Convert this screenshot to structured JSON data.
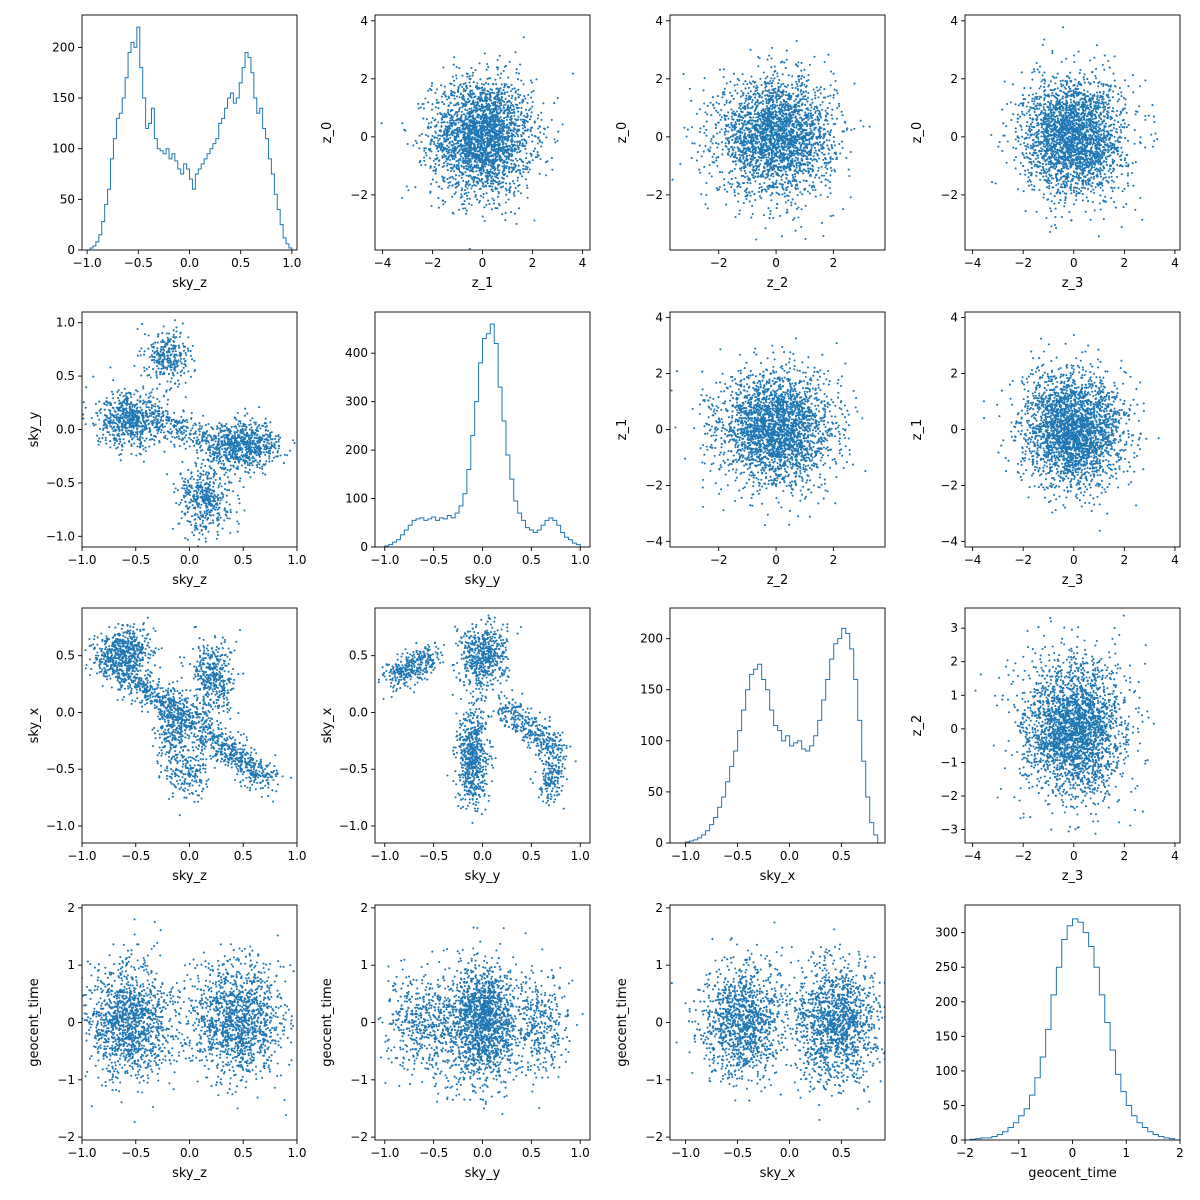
{
  "figure": {
    "colors": {
      "series": "#1f77b4",
      "frame": "#000000",
      "background": "#ffffff"
    }
  },
  "chart_data": [
    {
      "type": "histogram",
      "row": 0,
      "col": 0,
      "xlabel": "sky_z",
      "ylabel": "",
      "xlim": [
        -1.05,
        1.05
      ],
      "ylim": [
        0,
        232
      ],
      "xticks": [
        -1.0,
        -0.5,
        0.0,
        0.5,
        1.0
      ],
      "yticks": [
        0,
        50,
        100,
        150,
        200
      ],
      "bins": {
        "start": -1.0,
        "end": 1.0,
        "heights": [
          0,
          2,
          4,
          8,
          15,
          28,
          45,
          60,
          90,
          110,
          130,
          135,
          150,
          170,
          195,
          205,
          200,
          220,
          180,
          150,
          120,
          125,
          140,
          110,
          100,
          98,
          95,
          100,
          90,
          95,
          88,
          80,
          75,
          85,
          80,
          70,
          60,
          75,
          80,
          85,
          90,
          95,
          100,
          105,
          110,
          125,
          130,
          140,
          150,
          155,
          145,
          150,
          165,
          180,
          195,
          190,
          175,
          150,
          135,
          140,
          120,
          110,
          90,
          75,
          55,
          40,
          25,
          12,
          6,
          2
        ]
      },
      "generator": {
        "kind": "hist"
      }
    },
    {
      "type": "scatter",
      "row": 0,
      "col": 1,
      "xlabel": "z_1",
      "ylabel": "z_0",
      "xlim": [
        -4.3,
        4.3
      ],
      "ylim": [
        -3.9,
        4.2
      ],
      "xticks": [
        -4,
        -2,
        0,
        2,
        4
      ],
      "yticks": [
        -2,
        0,
        2,
        4
      ],
      "generator": {
        "kind": "gaussian"
      }
    },
    {
      "type": "scatter",
      "row": 0,
      "col": 2,
      "xlabel": "z_2",
      "ylabel": "z_0",
      "xlim": [
        -3.7,
        3.8
      ],
      "ylim": [
        -3.9,
        4.2
      ],
      "xticks": [
        -2,
        0,
        2
      ],
      "yticks": [
        -2,
        0,
        2,
        4
      ],
      "generator": {
        "kind": "gaussian"
      }
    },
    {
      "type": "scatter",
      "row": 0,
      "col": 3,
      "xlabel": "z_3",
      "ylabel": "z_0",
      "xlim": [
        -4.3,
        4.2
      ],
      "ylim": [
        -3.9,
        4.2
      ],
      "xticks": [
        -4,
        -2,
        0,
        2,
        4
      ],
      "yticks": [
        -2,
        0,
        2,
        4
      ],
      "generator": {
        "kind": "gaussian"
      }
    },
    {
      "type": "scatter",
      "row": 1,
      "col": 0,
      "xlabel": "sky_z",
      "ylabel": "sky_y",
      "xlim": [
        -1.0,
        1.0
      ],
      "ylim": [
        -1.1,
        1.1
      ],
      "xticks": [
        -1.0,
        -0.5,
        0.0,
        0.5,
        1.0
      ],
      "yticks": [
        -1.0,
        -0.5,
        0.0,
        0.5,
        1.0
      ],
      "generator": {
        "kind": "sky_zy"
      }
    },
    {
      "type": "histogram",
      "row": 1,
      "col": 1,
      "xlabel": "sky_y",
      "ylabel": "",
      "xlim": [
        -1.1,
        1.1
      ],
      "ylim": [
        0,
        485
      ],
      "xticks": [
        -1.0,
        -0.5,
        0.0,
        0.5,
        1.0
      ],
      "yticks": [
        0,
        100,
        200,
        300,
        400
      ],
      "bins": {
        "start": -1.0,
        "end": 1.0,
        "heights": [
          2,
          5,
          10,
          15,
          25,
          35,
          45,
          55,
          58,
          60,
          55,
          58,
          62,
          55,
          60,
          58,
          65,
          60,
          70,
          85,
          110,
          160,
          230,
          300,
          380,
          430,
          440,
          460,
          420,
          330,
          260,
          190,
          140,
          95,
          70,
          55,
          40,
          35,
          30,
          35,
          45,
          55,
          60,
          55,
          45,
          30,
          20,
          15,
          8,
          5
        ]
      },
      "generator": {
        "kind": "hist"
      }
    },
    {
      "type": "scatter",
      "row": 1,
      "col": 2,
      "xlabel": "z_2",
      "ylabel": "z_1",
      "xlim": [
        -3.7,
        3.8
      ],
      "ylim": [
        -4.2,
        4.2
      ],
      "xticks": [
        -2,
        0,
        2
      ],
      "yticks": [
        -4,
        -2,
        0,
        2,
        4
      ],
      "generator": {
        "kind": "gaussian"
      }
    },
    {
      "type": "scatter",
      "row": 1,
      "col": 3,
      "xlabel": "z_3",
      "ylabel": "z_1",
      "xlim": [
        -4.3,
        4.2
      ],
      "ylim": [
        -4.2,
        4.2
      ],
      "xticks": [
        -4,
        -2,
        0,
        2,
        4
      ],
      "yticks": [
        -4,
        -2,
        0,
        2,
        4
      ],
      "generator": {
        "kind": "gaussian"
      }
    },
    {
      "type": "scatter",
      "row": 2,
      "col": 0,
      "xlabel": "sky_z",
      "ylabel": "sky_x",
      "xlim": [
        -1.0,
        1.0
      ],
      "ylim": [
        -1.15,
        0.92
      ],
      "xticks": [
        -1.0,
        -0.5,
        0.0,
        0.5,
        1.0
      ],
      "yticks": [
        -1.0,
        -0.5,
        0.0,
        0.5
      ],
      "generator": {
        "kind": "sky_zx"
      }
    },
    {
      "type": "scatter",
      "row": 2,
      "col": 1,
      "xlabel": "sky_y",
      "ylabel": "sky_x",
      "xlim": [
        -1.1,
        1.1
      ],
      "ylim": [
        -1.15,
        0.92
      ],
      "xticks": [
        -1.0,
        -0.5,
        0.0,
        0.5,
        1.0
      ],
      "yticks": [
        -1.0,
        -0.5,
        0.0,
        0.5
      ],
      "generator": {
        "kind": "sky_yx"
      }
    },
    {
      "type": "histogram",
      "row": 2,
      "col": 2,
      "xlabel": "sky_x",
      "ylabel": "",
      "xlim": [
        -1.15,
        0.92
      ],
      "ylim": [
        0,
        230
      ],
      "xticks": [
        -1.0,
        -0.5,
        0.0,
        0.5
      ],
      "yticks": [
        0,
        50,
        100,
        150,
        200
      ],
      "bins": {
        "start": -1.0,
        "end": 0.85,
        "heights": [
          1,
          2,
          3,
          5,
          8,
          12,
          18,
          25,
          35,
          45,
          60,
          75,
          90,
          110,
          130,
          150,
          165,
          170,
          175,
          160,
          150,
          130,
          115,
          110,
          100,
          105,
          95,
          98,
          100,
          92,
          90,
          95,
          105,
          120,
          140,
          160,
          180,
          195,
          200,
          210,
          205,
          190,
          160,
          120,
          80,
          45,
          20,
          8
        ]
      },
      "generator": {
        "kind": "hist"
      }
    },
    {
      "type": "scatter",
      "row": 2,
      "col": 3,
      "xlabel": "z_3",
      "ylabel": "z_2",
      "xlim": [
        -4.3,
        4.2
      ],
      "ylim": [
        -3.4,
        3.6
      ],
      "xticks": [
        -4,
        -2,
        0,
        2,
        4
      ],
      "yticks": [
        -3,
        -2,
        -1,
        0,
        1,
        2,
        3
      ],
      "generator": {
        "kind": "gaussian"
      }
    },
    {
      "type": "scatter",
      "row": 3,
      "col": 0,
      "xlabel": "sky_z",
      "ylabel": "geocent_time",
      "xlim": [
        -1.0,
        1.0
      ],
      "ylim": [
        -2.05,
        2.05
      ],
      "xticks": [
        -1.0,
        -0.5,
        0.0,
        0.5,
        1.0
      ],
      "yticks": [
        -2,
        -1,
        0,
        1,
        2
      ],
      "generator": {
        "kind": "sky_t_z"
      }
    },
    {
      "type": "scatter",
      "row": 3,
      "col": 1,
      "xlabel": "sky_y",
      "ylabel": "geocent_time",
      "xlim": [
        -1.1,
        1.1
      ],
      "ylim": [
        -2.05,
        2.05
      ],
      "xticks": [
        -1.0,
        -0.5,
        0.0,
        0.5,
        1.0
      ],
      "yticks": [
        -2,
        -1,
        0,
        1,
        2
      ],
      "generator": {
        "kind": "sky_t_y"
      }
    },
    {
      "type": "scatter",
      "row": 3,
      "col": 2,
      "xlabel": "sky_x",
      "ylabel": "geocent_time",
      "xlim": [
        -1.15,
        0.92
      ],
      "ylim": [
        -2.05,
        2.05
      ],
      "xticks": [
        -1.0,
        -0.5,
        0.0,
        0.5
      ],
      "yticks": [
        -2,
        -1,
        0,
        1,
        2
      ],
      "generator": {
        "kind": "sky_t_x"
      }
    },
    {
      "type": "histogram",
      "row": 3,
      "col": 3,
      "xlabel": "geocent_time",
      "ylabel": "",
      "xlim": [
        -2.0,
        2.0
      ],
      "ylim": [
        0,
        340
      ],
      "xticks": [
        -2,
        -1,
        0,
        1,
        2
      ],
      "yticks": [
        0,
        50,
        100,
        150,
        200,
        250,
        300
      ],
      "bins": {
        "start": -1.9,
        "end": 1.9,
        "heights": [
          1,
          2,
          3,
          3,
          5,
          8,
          12,
          18,
          25,
          35,
          45,
          65,
          90,
          120,
          160,
          210,
          250,
          290,
          310,
          320,
          315,
          300,
          280,
          250,
          210,
          170,
          130,
          95,
          70,
          50,
          35,
          25,
          18,
          12,
          8,
          5,
          3,
          2
        ]
      },
      "generator": {
        "kind": "hist"
      }
    }
  ]
}
